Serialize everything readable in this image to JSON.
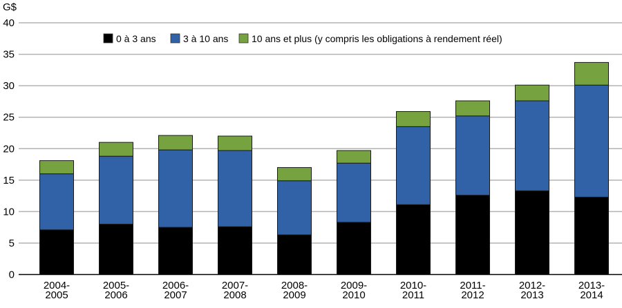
{
  "chart_data": {
    "type": "bar",
    "stacked": true,
    "title": "",
    "unit_label": "G$",
    "xlabel": "",
    "ylabel": "G$",
    "ylim": [
      0,
      40
    ],
    "yticks": [
      0,
      5,
      10,
      15,
      20,
      25,
      30,
      35,
      40
    ],
    "grid": true,
    "legend_position": "top-center",
    "categories": [
      [
        "2004-",
        "2005"
      ],
      [
        "2005-",
        "2006"
      ],
      [
        "2006-",
        "2007"
      ],
      [
        "2007-",
        "2008"
      ],
      [
        "2008-",
        "2009"
      ],
      [
        "2009-",
        "2010"
      ],
      [
        "2010-",
        "2011"
      ],
      [
        "2011-",
        "2012"
      ],
      [
        "2012-",
        "2013"
      ],
      [
        "2013-",
        "2014"
      ]
    ],
    "series": [
      {
        "name": "0 à 3 ans",
        "color": "#000000",
        "values": [
          7.1,
          8.0,
          7.5,
          7.6,
          6.3,
          8.3,
          11.1,
          12.6,
          13.3,
          12.3
        ]
      },
      {
        "name": "3 à 10 ans",
        "color": "#3162A8",
        "values": [
          8.9,
          10.8,
          12.3,
          12.1,
          8.6,
          9.4,
          12.4,
          12.6,
          14.3,
          17.8
        ]
      },
      {
        "name": "10 ans et plus (y compris les obligations à rendement réel)",
        "color": "#76A240",
        "values": [
          2.1,
          2.2,
          2.3,
          2.3,
          2.1,
          2.0,
          2.4,
          2.4,
          2.5,
          3.6
        ]
      }
    ]
  }
}
